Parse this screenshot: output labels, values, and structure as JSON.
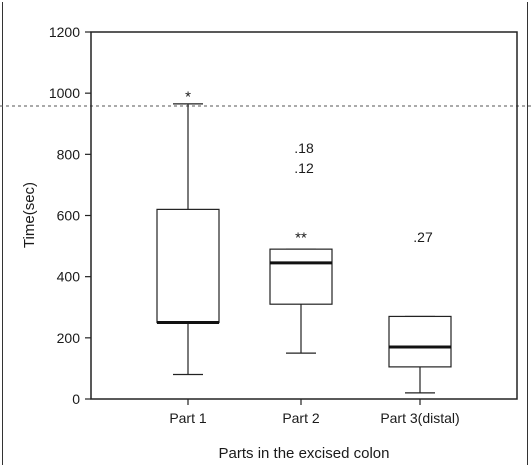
{
  "chart_data": {
    "type": "boxplot",
    "title": "",
    "xlabel": "Parts in the excised colon",
    "ylabel": "Time(sec)",
    "ylim": [
      0,
      1200
    ],
    "yticks": [
      0,
      200,
      400,
      600,
      800,
      1000,
      1200
    ],
    "grid": false,
    "categories": [
      "Part 1",
      "Part 2",
      "Part 3(distal)"
    ],
    "boxes": [
      {
        "name": "Part 1",
        "whisker_low": 80,
        "q1": 250,
        "median": 250,
        "q3": 620,
        "whisker_high": 965
      },
      {
        "name": "Part 2",
        "whisker_low": 150,
        "q1": 310,
        "median": 445,
        "q3": 490,
        "whisker_high": 490
      },
      {
        "name": "Part 3(distal)",
        "whisker_low": 20,
        "q1": 105,
        "median": 170,
        "q3": 270,
        "whisker_high": 270
      }
    ],
    "outliers": [
      {
        "category": "Part 1",
        "value": 1005,
        "marker": "*",
        "label": ""
      },
      {
        "category": "Part 2",
        "value": 820,
        "marker": "",
        "label": ".18"
      },
      {
        "category": "Part 2",
        "value": 755,
        "marker": "",
        "label": ".12"
      },
      {
        "category": "Part 2",
        "value": 545,
        "marker": "**",
        "label": ""
      },
      {
        "category": "Part 3(distal)",
        "value": 530,
        "marker": "",
        "label": ".27"
      }
    ]
  }
}
